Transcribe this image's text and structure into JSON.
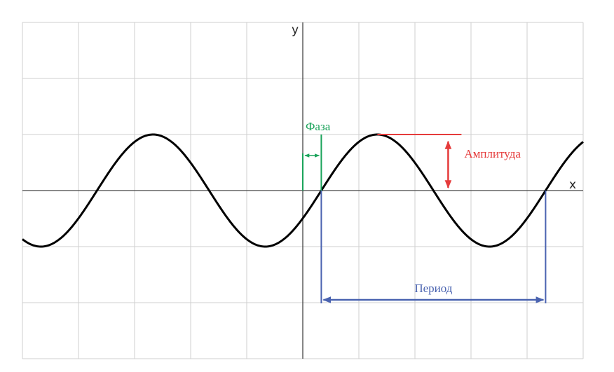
{
  "axes": {
    "x_label": "x",
    "y_label": "y"
  },
  "annotations": {
    "phase": "Фаза",
    "amplitude": "Амплитуда",
    "period": "Период"
  },
  "colors": {
    "grid": "#cfcfcf",
    "axis": "#444444",
    "curve": "#000000",
    "phase": "#1aa35a",
    "amplitude": "#e53b3b",
    "period": "#4a63b0"
  },
  "chart_data": {
    "type": "line",
    "function": "A*sin((2*pi/T)*(x - phi))",
    "amplitude": 1,
    "period": 4,
    "phase_shift": 0.33,
    "x_range": [
      -5,
      5
    ],
    "y_range": [
      -3,
      3
    ],
    "grid": true
  }
}
